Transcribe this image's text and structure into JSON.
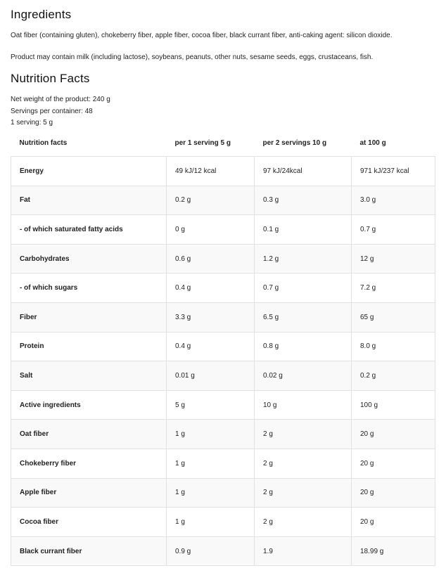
{
  "ingredients": {
    "title": "Ingredients",
    "paragraphs": [
      "Oat fiber (containing gluten), chokeberry fiber, apple fiber, cocoa fiber, black currant fiber, anti-caking agent: silicon dioxide.",
      "Product may contain milk (including lactose), soybeans, peanuts, other nuts, sesame seeds, eggs, crustaceans, fish."
    ]
  },
  "nutrition": {
    "title": "Nutrition Facts",
    "details": [
      "Net weight of the product: 240 g",
      "Servings per container: 48",
      "1 serving: 5 g"
    ]
  },
  "table": {
    "header": [
      "Nutrition facts",
      "per 1 serving 5 g",
      "per 2 servings 10 g",
      "at 100 g"
    ],
    "rows": [
      [
        "Energy",
        "49 kJ/12 kcal",
        "97 kJ/24kcal",
        "971 kJ/237 kcal"
      ],
      [
        "Fat",
        "0.2 g",
        "0.3 g",
        "3.0 g"
      ],
      [
        "- of which saturated fatty acids",
        "0 g",
        "0.1 g",
        "0.7 g"
      ],
      [
        "Carbohydrates",
        "0.6 g",
        "1.2 g",
        "12 g"
      ],
      [
        "- of which sugars",
        "0.4 g",
        "0.7 g",
        "7.2 g"
      ],
      [
        "Fiber",
        "3.3 g",
        "6.5 g",
        "65 g"
      ],
      [
        "Protein",
        "0.4 g",
        "0.8 g",
        "8.0 g"
      ],
      [
        "Salt",
        "0.01 g",
        "0.02 g",
        "0.2 g"
      ],
      [
        "Active ingredients",
        "5 g",
        "10 g",
        "100 g"
      ],
      [
        "Oat fiber",
        "1 g",
        "2 g",
        "20 g"
      ],
      [
        "Chokeberry fiber",
        "1 g",
        "2 g",
        "20 g"
      ],
      [
        "Apple fiber",
        "1 g",
        "2 g",
        "20 g"
      ],
      [
        "Cocoa fiber",
        "1 g",
        "2 g",
        "20 g"
      ],
      [
        "Black currant fiber",
        "0.9 g",
        "1.9",
        "18.99 g"
      ]
    ]
  }
}
